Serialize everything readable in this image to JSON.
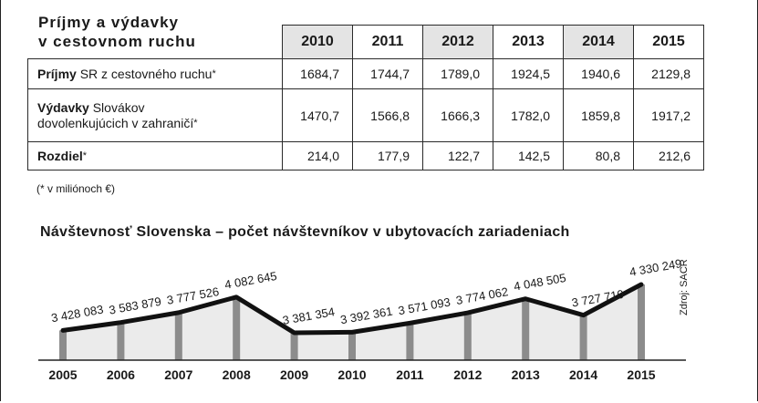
{
  "table": {
    "title_line1": "Príjmy a výdavky",
    "title_line2": "v cestovnom ruchu",
    "years": [
      "2010",
      "2011",
      "2012",
      "2013",
      "2014",
      "2015"
    ],
    "rows": [
      {
        "label_bold": "Príjmy",
        "label_rest": " SR z cestovného ruchu",
        "label_line2": "",
        "asterisk": "*",
        "values": [
          "1684,7",
          "1744,7",
          "1789,0",
          "1924,5",
          "1940,6",
          "2129,8"
        ]
      },
      {
        "label_bold": "Výdavky",
        "label_rest": " Slovákov",
        "label_line2": "dovolenkujúcich v zahraničí",
        "asterisk": "*",
        "values": [
          "1470,7",
          "1566,8",
          "1666,3",
          "1782,0",
          "1859,8",
          "1917,2"
        ]
      },
      {
        "label_bold": "Rozdiel",
        "label_rest": "",
        "label_line2": "",
        "asterisk": "*",
        "values": [
          "214,0",
          "177,9",
          "122,7",
          "142,5",
          "80,8",
          "212,6"
        ]
      }
    ],
    "note": "(* v miliónoch €)"
  },
  "chart_data": {
    "type": "line",
    "title": "Návštevnosť Slovenska – počet návštevníkov v ubytovacích zariadeniach",
    "x": [
      "2005",
      "2006",
      "2007",
      "2008",
      "2009",
      "2010",
      "2011",
      "2012",
      "2013",
      "2014",
      "2015"
    ],
    "values": [
      3428083,
      3583879,
      3777526,
      4082645,
      3381354,
      3392361,
      3571093,
      3774062,
      4048505,
      3727710,
      4330249
    ],
    "value_labels": [
      "3 428 083",
      "3 583 879",
      "3 777 526",
      "4 082 645",
      "3 381 354",
      "3 392 361",
      "3 571 093",
      "3 774 062",
      "4 048 505",
      "3 727 710",
      "4 330 249"
    ],
    "source": "Zdroj: SACR",
    "line_color": "#111111",
    "bar_color": "#8c8c8c",
    "fill_color": "#ebebeb"
  }
}
